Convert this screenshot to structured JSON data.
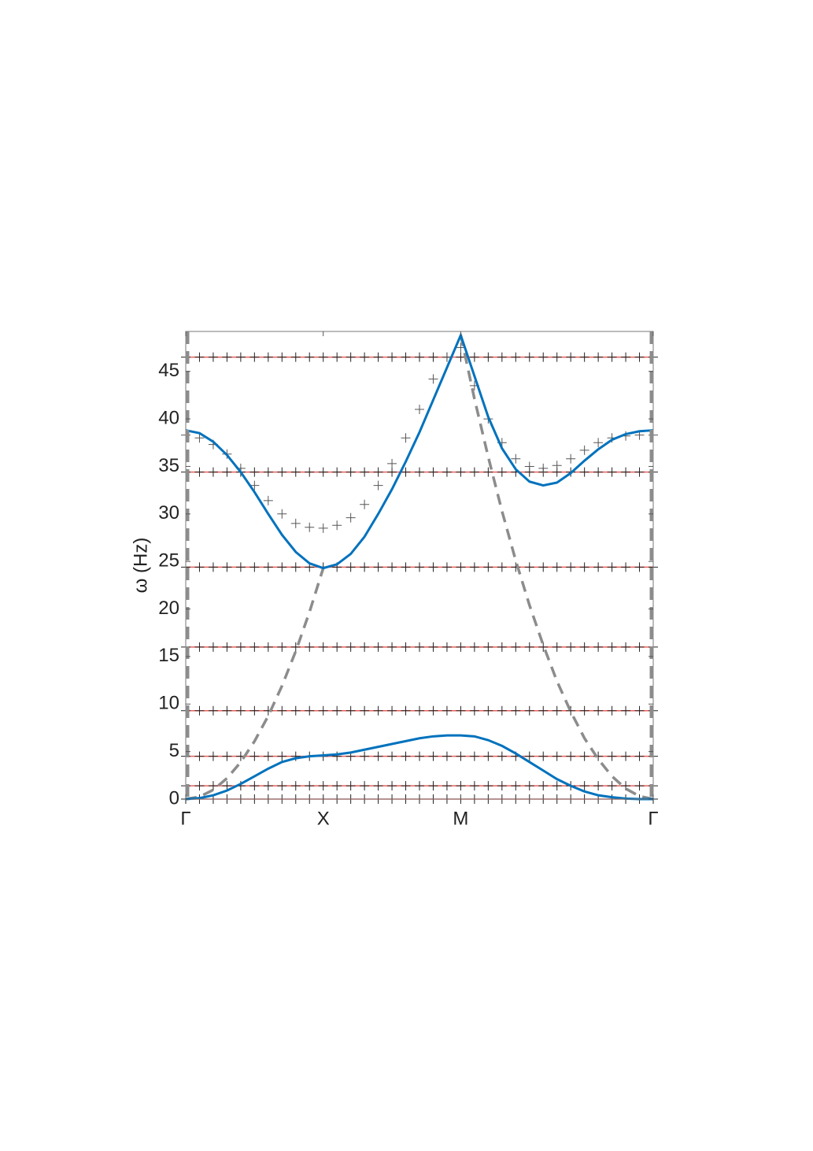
{
  "chart_data": {
    "type": "line",
    "y_label": "ω (Hz)",
    "xlim": [
      0,
      3.4
    ],
    "ylim": [
      0,
      49.2
    ],
    "xticks": [
      {
        "value": 0,
        "label": "Γ"
      },
      {
        "value": 1,
        "label": "X"
      },
      {
        "value": 2,
        "label": "M"
      },
      {
        "value": 3.4,
        "label": "Γ"
      }
    ],
    "yticks": [
      0,
      5,
      10,
      15,
      20,
      25,
      30,
      35,
      40,
      45
    ],
    "x": [
      0,
      0.1,
      0.2,
      0.3,
      0.4,
      0.5,
      0.6,
      0.7,
      0.8,
      0.9,
      1,
      1.1,
      1.2,
      1.3,
      1.4,
      1.5,
      1.6,
      1.7,
      1.8,
      1.9,
      2,
      2.1,
      2.2,
      2.3,
      2.4,
      2.5,
      2.6,
      2.7,
      2.8,
      2.9,
      3,
      3.1,
      3.2,
      3.3,
      3.4
    ],
    "series": [
      {
        "color": "#e8605a",
        "marker_color": "#222222",
        "line": "solid",
        "marker": "+",
        "values": [
          0,
          0,
          0,
          0,
          0,
          0,
          0,
          0,
          0,
          0,
          0,
          0,
          0,
          0,
          0,
          0,
          0,
          0,
          0,
          0,
          0,
          0,
          0,
          0,
          0,
          0,
          0,
          0,
          0,
          0,
          0,
          0,
          0,
          0,
          0
        ]
      },
      {
        "color": "#e8605a",
        "marker_color": "#222222",
        "line": "solid",
        "marker": "+",
        "values": [
          1.4,
          1.4,
          1.4,
          1.4,
          1.4,
          1.4,
          1.4,
          1.4,
          1.4,
          1.4,
          1.4,
          1.4,
          1.4,
          1.4,
          1.4,
          1.4,
          1.4,
          1.4,
          1.4,
          1.4,
          1.4,
          1.4,
          1.4,
          1.4,
          1.4,
          1.4,
          1.4,
          1.4,
          1.4,
          1.4,
          1.4,
          1.4,
          1.4,
          1.4,
          1.4
        ]
      },
      {
        "color": "#e8605a",
        "marker_color": "#222222",
        "line": "solid",
        "marker": "+",
        "values": [
          4.5,
          4.5,
          4.5,
          4.5,
          4.5,
          4.5,
          4.5,
          4.5,
          4.5,
          4.5,
          4.5,
          4.5,
          4.5,
          4.5,
          4.5,
          4.5,
          4.5,
          4.5,
          4.5,
          4.5,
          4.5,
          4.5,
          4.5,
          4.5,
          4.5,
          4.5,
          4.5,
          4.5,
          4.5,
          4.5,
          4.5,
          4.5,
          4.5,
          4.5,
          4.5
        ]
      },
      {
        "color": "#e8605a",
        "marker_color": "#222222",
        "line": "solid",
        "marker": "+",
        "values": [
          9.3,
          9.3,
          9.3,
          9.3,
          9.3,
          9.3,
          9.3,
          9.3,
          9.3,
          9.3,
          9.3,
          9.3,
          9.3,
          9.3,
          9.3,
          9.3,
          9.3,
          9.3,
          9.3,
          9.3,
          9.3,
          9.3,
          9.3,
          9.3,
          9.3,
          9.3,
          9.3,
          9.3,
          9.3,
          9.3,
          9.3,
          9.3,
          9.3,
          9.3,
          9.3
        ]
      },
      {
        "color": "#e8605a",
        "marker_color": "#222222",
        "line": "solid",
        "marker": "+",
        "values": [
          16,
          16,
          16,
          16,
          16,
          16,
          16,
          16,
          16,
          16,
          16,
          16,
          16,
          16,
          16,
          16,
          16,
          16,
          16,
          16,
          16,
          16,
          16,
          16,
          16,
          16,
          16,
          16,
          16,
          16,
          16,
          16,
          16,
          16,
          16
        ]
      },
      {
        "color": "#e8605a",
        "marker_color": "#222222",
        "line": "solid",
        "marker": "+",
        "values": [
          24.4,
          24.4,
          24.4,
          24.4,
          24.4,
          24.4,
          24.4,
          24.4,
          24.4,
          24.4,
          24.4,
          24.4,
          24.4,
          24.4,
          24.4,
          24.4,
          24.4,
          24.4,
          24.4,
          24.4,
          24.4,
          24.4,
          24.4,
          24.4,
          24.4,
          24.4,
          24.4,
          24.4,
          24.4,
          24.4,
          24.4,
          24.4,
          24.4,
          24.4,
          24.4
        ]
      },
      {
        "color": "#e8605a",
        "marker_color": "#222222",
        "line": "solid",
        "marker": "+",
        "values": [
          34.4,
          34.4,
          34.4,
          34.4,
          34.4,
          34.4,
          34.4,
          34.4,
          34.4,
          34.4,
          34.4,
          34.4,
          34.4,
          34.4,
          34.4,
          34.4,
          34.4,
          34.4,
          34.4,
          34.4,
          34.4,
          34.4,
          34.4,
          34.4,
          34.4,
          34.4,
          34.4,
          34.4,
          34.4,
          34.4,
          34.4,
          34.4,
          34.4,
          34.4,
          34.4
        ]
      },
      {
        "color": "#e8605a",
        "marker_color": "#222222",
        "line": "solid",
        "marker": "+",
        "values": [
          46.5,
          46.5,
          46.5,
          46.5,
          46.5,
          46.5,
          46.5,
          46.5,
          46.5,
          46.5,
          46.5,
          46.5,
          46.5,
          46.5,
          46.5,
          46.5,
          46.5,
          46.5,
          46.5,
          46.5,
          46.5,
          46.5,
          46.5,
          46.5,
          46.5,
          46.5,
          46.5,
          46.5,
          46.5,
          46.5,
          46.5,
          46.5,
          46.5,
          46.5,
          46.5
        ]
      },
      {
        "color": "#555555",
        "marker_color": "#555555",
        "line": "none",
        "marker": "+",
        "values": [
          38.3,
          38.0,
          37.3,
          36.3,
          34.8,
          33.0,
          31.4,
          30.0,
          29.0,
          28.6,
          28.5,
          28.8,
          29.6,
          31.0,
          33.0,
          35.3,
          38.0,
          41.0,
          44.2,
          46.5,
          47.5,
          43.5,
          40.0,
          37.5,
          35.8,
          35.0,
          34.8,
          35.1,
          35.8,
          36.7,
          37.5,
          38.0,
          38.2,
          38.3,
          38.3
        ]
      },
      {
        "color": "#8c8c8c",
        "line": "dashed",
        "marker": "none",
        "values": [
          0,
          0.24,
          0.97,
          2.19,
          3.89,
          6.08,
          8.75,
          11.91,
          15.55,
          19.68,
          24.3,
          null,
          null,
          null,
          null,
          null,
          null,
          null,
          null,
          null,
          48.8,
          42.1,
          36.0,
          30.3,
          25.1,
          20.4,
          16.2,
          12.4,
          9.2,
          6.4,
          4.2,
          2.4,
          1.1,
          0.3,
          0
        ]
      },
      {
        "color": "#0072bd",
        "line": "solid",
        "marker": "none",
        "values": [
          38.8,
          38.5,
          37.6,
          36.2,
          34.4,
          32.3,
          30.0,
          27.8,
          26.0,
          24.8,
          24.3,
          24.7,
          25.8,
          27.6,
          30.0,
          32.6,
          35.5,
          38.6,
          42.0,
          45.4,
          48.8,
          44.5,
          40.2,
          36.9,
          34.7,
          33.4,
          33.0,
          33.3,
          34.3,
          35.6,
          36.8,
          37.8,
          38.4,
          38.7,
          38.8
        ]
      },
      {
        "color": "#0072bd",
        "line": "solid",
        "marker": "none",
        "values": [
          0,
          0.1,
          0.4,
          0.9,
          1.6,
          2.4,
          3.2,
          3.9,
          4.3,
          4.5,
          4.6,
          4.7,
          4.9,
          5.2,
          5.5,
          5.8,
          6.1,
          6.4,
          6.6,
          6.7,
          6.7,
          6.6,
          6.2,
          5.6,
          4.8,
          3.9,
          3.0,
          2.1,
          1.4,
          0.8,
          0.4,
          0.2,
          0.05,
          0,
          0
        ]
      }
    ]
  }
}
